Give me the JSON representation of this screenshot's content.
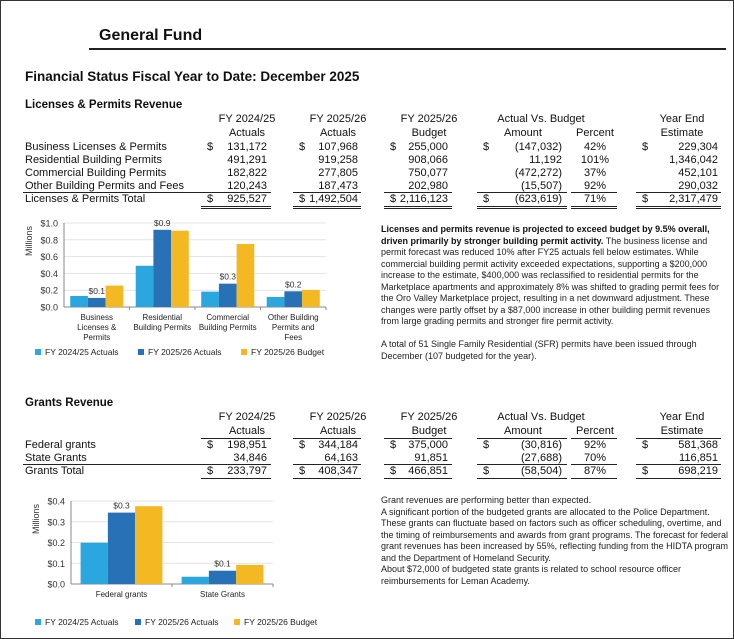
{
  "header": {
    "title": "General Fund",
    "subtitle": "Financial Status Fiscal Year to Date: December 2025"
  },
  "colors": {
    "fy2425_actuals": "#2aa7df",
    "fy2526_actuals": "#2871b6",
    "fy2526_budget": "#f4b922"
  },
  "licenses": {
    "section_title": "Licenses & Permits Revenue",
    "columns": {
      "c1a": "FY 2024/25",
      "c1b": "Actuals",
      "c2a": "FY 2025/26",
      "c2b": "Actuals",
      "c3a": "FY 2025/26",
      "c3b": "Budget",
      "avb": "Actual Vs. Budget",
      "amount": "Amount",
      "percent": "Percent",
      "yea": "Year End",
      "yeb": "Estimate"
    },
    "rows": [
      {
        "label": "Business Licenses & Permits",
        "d": "$",
        "c1": "131,172",
        "c2": "107,968",
        "c3": "255,000",
        "amt": "(147,032)",
        "pct": "42%",
        "ye": "229,304"
      },
      {
        "label": "Residential Building Permits",
        "d": "",
        "c1": "491,291",
        "c2": "919,258",
        "c3": "908,066",
        "amt": "11,192",
        "pct": "101%",
        "ye": "1,346,042"
      },
      {
        "label": "Commercial Building Permits",
        "d": "",
        "c1": "182,822",
        "c2": "277,805",
        "c3": "750,077",
        "amt": "(472,272)",
        "pct": "37%",
        "ye": "452,101"
      },
      {
        "label": "Other Building Permits and Fees",
        "d": "",
        "c1": "120,243",
        "c2": "187,473",
        "c3": "202,980",
        "amt": "(15,507)",
        "pct": "92%",
        "ye": "290,032"
      },
      {
        "label": "Licenses & Permits Total",
        "d": "$",
        "c1": "925,527",
        "c2": "1,492,504",
        "c3": "2,116,123",
        "amt": "(623,619)",
        "pct": "71%",
        "ye": "2,317,479"
      }
    ],
    "commentary_bold": "Licenses and permits revenue is projected to exceed budget by 9.5% overall, driven primarily by stronger building permit activity.",
    "commentary": " The business license and permit forecast was reduced 10% after FY25 actuals fell below estimates. While commercial building permit activity exceeded expectations, supporting a $200,000 increase to the estimate, $400,000 was reclassified to residential permits for the Marketplace apartments and approximately 8% was shifted to grading permit fees for the Oro Valley Marketplace project, resulting in a net downward adjustment. These changes were partly offset by a $87,000 increase in other building permit revenues from large grading permits and stronger fire permit activity.",
    "commentary2": "A total of 51 Single Family Residential (SFR) permits have been issued through December (107 budgeted for the year)."
  },
  "grants": {
    "section_title": "Grants Revenue",
    "columns": {
      "c1a": "FY 2024/25",
      "c1b": "Actuals",
      "c2a": "FY 2025/26",
      "c2b": "Actuals",
      "c3a": "FY 2025/26",
      "c3b": "Budget",
      "avb": "Actual Vs. Budget",
      "amount": "Amount",
      "percent": "Percent",
      "yea": "Year End",
      "yeb": "Estimate"
    },
    "rows": [
      {
        "label": "Federal grants",
        "d": "$",
        "c1": "198,951",
        "c2": "344,184",
        "c3": "375,000",
        "amt": "(30,816)",
        "pct": "92%",
        "ye": "581,368"
      },
      {
        "label": "State Grants",
        "d": "",
        "c1": "34,846",
        "c2": "64,163",
        "c3": "91,851",
        "amt": "(27,688)",
        "pct": "70%",
        "ye": "116,851"
      },
      {
        "label": "Grants Total",
        "d": "$",
        "c1": "233,797",
        "c2": "408,347",
        "c3": "466,851",
        "amt": "(58,504)",
        "pct": "87%",
        "ye": "698,219"
      }
    ],
    "commentary_lines": [
      "Grant revenues are performing better than expected.",
      "A significant portion of the budgeted grants are allocated to the Police Department. These grants can fluctuate based on factors such as officer scheduling, overtime, and the timing of reimbursements and awards from grant programs. The forecast for federal grant revenues has been increased by 55%, reflecting funding from the HIDTA program and the Department of Homeland Security.",
      "About $72,000 of budgeted state grants is related to school resource officer reimbursements for Leman Academy."
    ]
  },
  "chart_data": [
    {
      "type": "bar",
      "ylabel": "Millions",
      "ylim": [
        0,
        1.0
      ],
      "yticks": [
        "$0.0",
        "$0.2",
        "$0.4",
        "$0.6",
        "$0.8",
        "$1.0"
      ],
      "tick_values": [
        0,
        0.2,
        0.4,
        0.6,
        0.8,
        1.0
      ],
      "categories": [
        [
          "Business",
          "Licenses &",
          "Permits"
        ],
        [
          "Residential",
          "Building Permits"
        ],
        [
          "Commercial",
          "Building Permits"
        ],
        [
          "Other Building",
          "Permits and",
          "Fees"
        ]
      ],
      "series": [
        {
          "name": "FY 2024/25 Actuals",
          "values": [
            0.131,
            0.491,
            0.183,
            0.12
          ]
        },
        {
          "name": "FY 2025/26 Actuals",
          "values": [
            0.108,
            0.919,
            0.278,
            0.187
          ],
          "data_labels": [
            "$0.1",
            "$0.9",
            "$0.3",
            "$0.2"
          ]
        },
        {
          "name": "FY 2025/26 Budget",
          "values": [
            0.255,
            0.908,
            0.75,
            0.203
          ]
        }
      ],
      "grid": true,
      "legend": "bottom"
    },
    {
      "type": "bar",
      "ylabel": "Millions",
      "ylim": [
        0,
        0.4
      ],
      "yticks": [
        "$0.0",
        "$0.1",
        "$0.2",
        "$0.3",
        "$0.4"
      ],
      "tick_values": [
        0,
        0.1,
        0.2,
        0.3,
        0.4
      ],
      "categories": [
        [
          "Federal grants"
        ],
        [
          "State Grants"
        ]
      ],
      "series": [
        {
          "name": "FY 2024/25 Actuals",
          "values": [
            0.199,
            0.035
          ]
        },
        {
          "name": "FY 2025/26 Actuals",
          "values": [
            0.344,
            0.064
          ],
          "data_labels": [
            "$0.3",
            "$0.1"
          ]
        },
        {
          "name": "FY 2025/26 Budget",
          "values": [
            0.375,
            0.092
          ]
        }
      ],
      "grid": true,
      "legend": "bottom"
    }
  ]
}
